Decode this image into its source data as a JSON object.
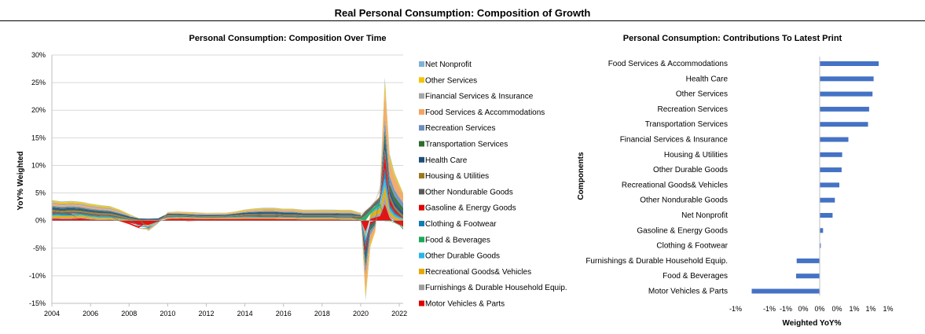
{
  "page_title": "Real Personal Consumption: Composition of Growth",
  "colors": {
    "bar": "#4472C4",
    "grid": "#D9D9D9",
    "axis": "#BFBFBF"
  },
  "chart_data": [
    {
      "type": "area",
      "title": "Personal Consumption: Composition Over Time",
      "xlabel": "",
      "ylabel": "YoY% Weighted",
      "x_tick_labels": [
        "2004",
        "2006",
        "2008",
        "2010",
        "2012",
        "2014",
        "2016",
        "2018",
        "2020",
        "2022"
      ],
      "y_tick_labels": [
        "30%",
        "25%",
        "20%",
        "15%",
        "10%",
        "5%",
        "0%",
        "-5%",
        "-10%",
        "-15%"
      ],
      "xlim": [
        2004,
        2022.2
      ],
      "ylim": [
        -15,
        30
      ],
      "stacked": true,
      "grid": true,
      "legend_position": "right",
      "x": [
        2004,
        2004.5,
        2005,
        2005.5,
        2006,
        2006.5,
        2007,
        2007.5,
        2008,
        2008.5,
        2009,
        2009.5,
        2010,
        2010.5,
        2011,
        2011.5,
        2012,
        2012.5,
        2013,
        2013.5,
        2014,
        2014.5,
        2015,
        2015.5,
        2016,
        2016.5,
        2017,
        2017.5,
        2018,
        2018.5,
        2019,
        2019.5,
        2020,
        2020.25,
        2020.5,
        2020.75,
        2021,
        2021.25,
        2021.5,
        2021.75,
        2022,
        2022.2
      ],
      "series": [
        {
          "name": "Net Nonprofit",
          "color": "#7FB1D9",
          "values": [
            0.08,
            0.08,
            0.08,
            0.08,
            0.06,
            0.06,
            0.06,
            0.04,
            0.02,
            0.0,
            -0.02,
            -0.02,
            0.02,
            0.04,
            0.04,
            0.04,
            0.04,
            0.04,
            0.04,
            0.04,
            0.06,
            0.06,
            0.06,
            0.06,
            0.06,
            0.06,
            0.06,
            0.06,
            0.06,
            0.06,
            0.06,
            0.06,
            0.04,
            -0.4,
            -0.2,
            0.0,
            0.2,
            0.6,
            0.3,
            0.2,
            0.1,
            0.05
          ]
        },
        {
          "name": "Other Services",
          "color": "#F5C400",
          "values": [
            0.3,
            0.3,
            0.3,
            0.3,
            0.28,
            0.28,
            0.25,
            0.22,
            0.15,
            0.05,
            -0.1,
            -0.05,
            0.08,
            0.12,
            0.12,
            0.12,
            0.1,
            0.1,
            0.1,
            0.12,
            0.16,
            0.18,
            0.18,
            0.18,
            0.18,
            0.18,
            0.16,
            0.16,
            0.18,
            0.18,
            0.18,
            0.18,
            0.1,
            -1.2,
            -0.6,
            -0.2,
            0.3,
            1.6,
            0.9,
            0.7,
            0.5,
            0.3
          ]
        },
        {
          "name": "Financial Services & Insurance",
          "color": "#A6A6A6",
          "values": [
            0.3,
            0.3,
            0.3,
            0.3,
            0.28,
            0.28,
            0.25,
            0.2,
            0.1,
            0.0,
            -0.1,
            -0.05,
            0.05,
            0.05,
            0.04,
            0.04,
            0.03,
            0.03,
            0.03,
            0.05,
            0.08,
            0.1,
            0.12,
            0.12,
            0.1,
            0.1,
            0.1,
            0.1,
            0.1,
            0.1,
            0.1,
            0.1,
            0.1,
            0.0,
            0.1,
            0.15,
            0.2,
            0.3,
            0.25,
            0.25,
            0.2,
            0.15
          ]
        },
        {
          "name": "Food Services & Accommodations",
          "color": "#F4A460",
          "values": [
            0.3,
            0.25,
            0.25,
            0.25,
            0.25,
            0.2,
            0.2,
            0.15,
            0.05,
            -0.05,
            -0.15,
            -0.05,
            0.1,
            0.12,
            0.15,
            0.15,
            0.12,
            0.12,
            0.12,
            0.12,
            0.15,
            0.2,
            0.22,
            0.22,
            0.2,
            0.2,
            0.2,
            0.2,
            0.2,
            0.2,
            0.2,
            0.2,
            0.1,
            -3.0,
            -1.5,
            -0.8,
            0.5,
            5.0,
            2.5,
            2.0,
            1.6,
            1.3
          ]
        },
        {
          "name": "Recreation Services",
          "color": "#6C8EBF",
          "values": [
            0.2,
            0.2,
            0.2,
            0.2,
            0.18,
            0.18,
            0.15,
            0.12,
            0.08,
            0.0,
            -0.08,
            -0.04,
            0.04,
            0.06,
            0.06,
            0.06,
            0.05,
            0.06,
            0.06,
            0.06,
            0.08,
            0.1,
            0.1,
            0.1,
            0.1,
            0.1,
            0.1,
            0.1,
            0.1,
            0.1,
            0.1,
            0.1,
            0.05,
            -1.5,
            -0.8,
            -0.4,
            0.2,
            2.0,
            1.5,
            1.2,
            1.0,
            0.9
          ]
        },
        {
          "name": "Transportation Services",
          "color": "#2E6B30",
          "values": [
            0.15,
            0.15,
            0.15,
            0.15,
            0.12,
            0.12,
            0.1,
            0.08,
            0.05,
            -0.02,
            -0.1,
            -0.05,
            0.02,
            0.04,
            0.04,
            0.04,
            0.04,
            0.04,
            0.04,
            0.05,
            0.06,
            0.08,
            0.08,
            0.08,
            0.08,
            0.08,
            0.08,
            0.08,
            0.08,
            0.08,
            0.08,
            0.08,
            0.02,
            -1.0,
            -0.6,
            -0.4,
            0.1,
            1.5,
            1.0,
            0.9,
            0.8,
            0.7
          ]
        },
        {
          "name": "Health Care",
          "color": "#1F4E79",
          "values": [
            0.4,
            0.4,
            0.4,
            0.35,
            0.35,
            0.35,
            0.3,
            0.3,
            0.3,
            0.25,
            0.2,
            0.25,
            0.25,
            0.25,
            0.2,
            0.2,
            0.2,
            0.2,
            0.2,
            0.25,
            0.3,
            0.35,
            0.35,
            0.35,
            0.35,
            0.35,
            0.3,
            0.3,
            0.3,
            0.3,
            0.3,
            0.3,
            0.2,
            -1.5,
            -0.5,
            -0.1,
            0.3,
            2.0,
            1.0,
            0.9,
            0.8,
            0.7
          ]
        },
        {
          "name": "Housing & Utilities",
          "color": "#9C7A1A",
          "values": [
            0.3,
            0.3,
            0.3,
            0.25,
            0.25,
            0.25,
            0.25,
            0.2,
            0.2,
            0.15,
            0.1,
            0.1,
            0.15,
            0.1,
            0.1,
            0.1,
            0.1,
            0.1,
            0.1,
            0.15,
            0.15,
            0.15,
            0.15,
            0.15,
            0.15,
            0.15,
            0.15,
            0.15,
            0.15,
            0.15,
            0.15,
            0.15,
            0.15,
            0.1,
            0.1,
            0.15,
            0.2,
            0.3,
            0.3,
            0.3,
            0.3,
            0.25
          ]
        },
        {
          "name": "Other Nondurable Goods",
          "color": "#595959",
          "values": [
            0.3,
            0.3,
            0.3,
            0.3,
            0.3,
            0.25,
            0.25,
            0.2,
            0.1,
            0.0,
            -0.1,
            0.05,
            0.15,
            0.15,
            0.15,
            0.12,
            0.12,
            0.12,
            0.12,
            0.15,
            0.2,
            0.2,
            0.2,
            0.2,
            0.2,
            0.2,
            0.2,
            0.2,
            0.2,
            0.2,
            0.2,
            0.2,
            0.3,
            0.8,
            0.6,
            0.6,
            0.7,
            0.6,
            0.4,
            0.3,
            0.2,
            0.1
          ]
        },
        {
          "name": "Gasoline & Energy Goods",
          "color": "#E00000",
          "values": [
            0.1,
            0.0,
            0.1,
            -0.05,
            0.0,
            0.05,
            0.0,
            -0.1,
            -0.25,
            -0.3,
            0.05,
            0.0,
            0.05,
            0.0,
            -0.1,
            -0.05,
            -0.05,
            0.0,
            0.0,
            0.0,
            0.05,
            0.05,
            0.1,
            0.1,
            0.05,
            0.05,
            0.0,
            0.0,
            0.0,
            0.0,
            0.0,
            0.0,
            -0.1,
            -1.0,
            -0.5,
            -0.2,
            0.0,
            2.5,
            1.0,
            0.5,
            0.3,
            0.1
          ]
        },
        {
          "name": "Clothing & Footwear",
          "color": "#0E7EB5",
          "values": [
            0.15,
            0.15,
            0.15,
            0.12,
            0.12,
            0.1,
            0.1,
            0.08,
            0.0,
            -0.08,
            -0.1,
            0.0,
            0.05,
            0.05,
            0.05,
            0.05,
            0.04,
            0.04,
            0.04,
            0.05,
            0.06,
            0.08,
            0.08,
            0.08,
            0.06,
            0.06,
            0.06,
            0.06,
            0.06,
            0.06,
            0.06,
            0.06,
            0.0,
            -1.2,
            -0.2,
            0.1,
            0.4,
            1.8,
            0.6,
            0.4,
            0.2,
            0.05
          ]
        },
        {
          "name": "Food & Beverages",
          "color": "#1BAA5A",
          "values": [
            0.15,
            0.12,
            0.12,
            0.12,
            0.1,
            0.1,
            0.1,
            0.08,
            0.05,
            0.0,
            -0.02,
            0.0,
            0.05,
            0.05,
            0.04,
            0.04,
            0.04,
            0.04,
            0.05,
            0.05,
            0.06,
            0.06,
            0.08,
            0.08,
            0.08,
            0.08,
            0.06,
            0.06,
            0.06,
            0.06,
            0.06,
            0.06,
            0.2,
            0.9,
            0.6,
            0.5,
            0.4,
            -0.1,
            -0.1,
            -0.1,
            -0.15,
            -0.25
          ]
        },
        {
          "name": "Other Durable Goods",
          "color": "#29B5E8",
          "values": [
            0.1,
            0.1,
            0.1,
            0.1,
            0.1,
            0.08,
            0.08,
            0.06,
            0.0,
            -0.08,
            -0.1,
            -0.02,
            0.05,
            0.05,
            0.05,
            0.05,
            0.04,
            0.04,
            0.05,
            0.05,
            0.06,
            0.06,
            0.06,
            0.06,
            0.06,
            0.06,
            0.06,
            0.06,
            0.06,
            0.06,
            0.06,
            0.06,
            0.0,
            -0.6,
            0.1,
            0.3,
            0.5,
            1.5,
            0.6,
            0.4,
            0.3,
            0.2
          ]
        },
        {
          "name": "Recreational Goods& Vehicles",
          "color": "#E6A800",
          "values": [
            0.3,
            0.3,
            0.3,
            0.3,
            0.3,
            0.25,
            0.25,
            0.2,
            0.1,
            0.0,
            -0.1,
            0.0,
            0.15,
            0.15,
            0.12,
            0.12,
            0.12,
            0.12,
            0.12,
            0.15,
            0.15,
            0.15,
            0.15,
            0.15,
            0.15,
            0.15,
            0.15,
            0.15,
            0.15,
            0.15,
            0.15,
            0.15,
            0.1,
            -0.4,
            0.6,
            0.8,
            0.9,
            1.8,
            0.8,
            0.5,
            0.3,
            0.2
          ]
        },
        {
          "name": "Furnishings & Durable Household Equip.",
          "color": "#9E9E9E",
          "values": [
            0.2,
            0.2,
            0.2,
            0.2,
            0.15,
            0.15,
            0.12,
            0.08,
            0.0,
            -0.1,
            -0.15,
            -0.05,
            0.05,
            0.06,
            0.06,
            0.05,
            0.05,
            0.05,
            0.05,
            0.06,
            0.08,
            0.08,
            0.08,
            0.08,
            0.08,
            0.08,
            0.08,
            0.08,
            0.08,
            0.08,
            0.08,
            0.08,
            0.0,
            -0.6,
            0.2,
            0.4,
            0.5,
            1.4,
            0.4,
            0.2,
            0.0,
            -0.2
          ]
        },
        {
          "name": "Motor Vehicles & Parts",
          "color": "#E00000",
          "values": [
            0.35,
            0.3,
            0.3,
            0.4,
            0.2,
            0.1,
            0.15,
            0.0,
            -0.4,
            -0.8,
            -0.8,
            -0.2,
            0.3,
            0.35,
            0.35,
            0.3,
            0.3,
            0.3,
            0.3,
            0.3,
            0.3,
            0.3,
            0.3,
            0.3,
            0.25,
            0.25,
            0.2,
            0.2,
            0.2,
            0.2,
            0.15,
            0.15,
            0.05,
            -2.0,
            0.3,
            0.6,
            0.8,
            3.0,
            0.5,
            -0.3,
            -0.7,
            -1.2
          ]
        }
      ]
    },
    {
      "type": "bar",
      "orientation": "horizontal",
      "title": "Personal Consumption: Contributions To Latest Print",
      "xlabel": "Weighted YoY%",
      "ylabel": "Components",
      "x_tick_labels": [
        "-1%",
        "-1%",
        "-1%",
        "0%",
        "0%",
        "0%",
        "1%",
        "1%",
        "1%"
      ],
      "xlim": [
        -1.2,
        1.2
      ],
      "grid": false,
      "categories": [
        "Food Services & Accommodations",
        "Health Care",
        "Other Services",
        "Recreation Services",
        "Transportation Services",
        "Financial Services & Insurance",
        "Housing & Utilities",
        "Other Durable Goods",
        "Recreational Goods& Vehicles",
        "Other Nondurable Goods",
        "Net Nonprofit",
        "Gasoline & Energy Goods",
        "Clothing & Footwear",
        "Furnishings & Durable Household Equip.",
        "Food & Beverages",
        "Motor Vehicles & Parts"
      ],
      "values": [
        1.05,
        0.96,
        0.94,
        0.88,
        0.86,
        0.51,
        0.4,
        0.39,
        0.35,
        0.27,
        0.23,
        0.06,
        0.02,
        -0.41,
        -0.42,
        -1.21
      ]
    }
  ]
}
